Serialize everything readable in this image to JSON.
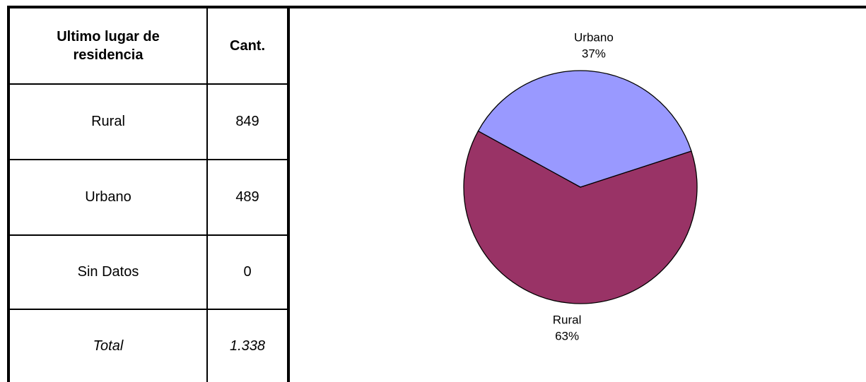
{
  "table": {
    "header": [
      "Ultimo lugar de residencia",
      "Cant."
    ],
    "rows": [
      [
        "Rural",
        "849"
      ],
      [
        "Urbano",
        "489"
      ],
      [
        "Sin Datos",
        "0"
      ]
    ],
    "total": [
      "Total",
      "1.338"
    ]
  },
  "chart_data": {
    "type": "pie",
    "categories": [
      "Rural",
      "Urbano"
    ],
    "values": [
      63,
      37
    ],
    "value_labels": [
      "63%",
      "37%"
    ],
    "colors": [
      "#993366",
      "#9999ff"
    ]
  }
}
